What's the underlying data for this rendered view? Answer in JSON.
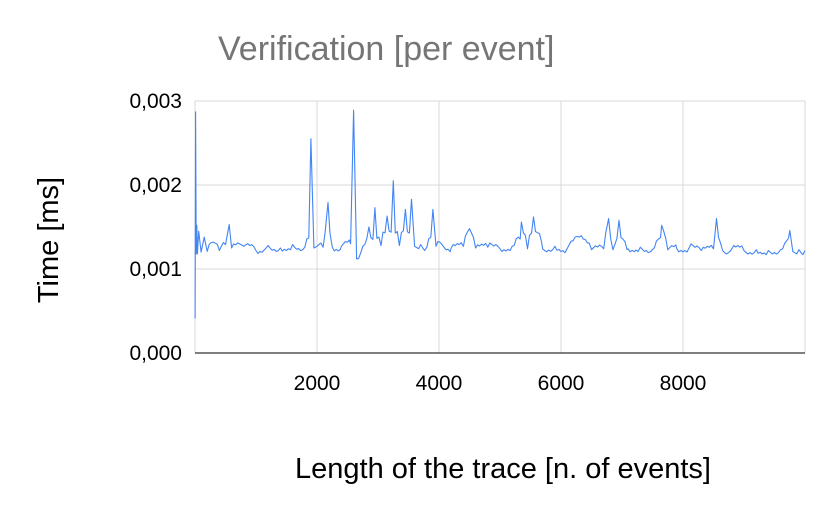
{
  "chart_data": {
    "type": "line",
    "title": "Verification [per event]",
    "xlabel": "Length of the trace [n. of events]",
    "ylabel": "Time [ms]",
    "xlim": [
      0,
      10000
    ],
    "ylim": [
      0,
      0.003
    ],
    "xticks": [
      2000,
      4000,
      6000,
      8000
    ],
    "xtick_labels": [
      "2000",
      "4000",
      "6000",
      "8000"
    ],
    "yticks": [
      0,
      0.001,
      0.002,
      0.003
    ],
    "ytick_labels": [
      "0,000",
      "0,001",
      "0,002",
      "0,003"
    ],
    "grid": true,
    "legend": "none",
    "series": [
      {
        "color": "#4285f4",
        "x": [
          1,
          10,
          20,
          30,
          40,
          60,
          100,
          150,
          200,
          300,
          400,
          500,
          560,
          600,
          800,
          1000,
          1200,
          1400,
          1600,
          1800,
          1900,
          1950,
          2000,
          2100,
          2180,
          2250,
          2400,
          2550,
          2600,
          2650,
          2750,
          2850,
          2950,
          3050,
          3150,
          3250,
          3350,
          3450,
          3550,
          3600,
          3700,
          3800,
          3900,
          3950,
          4050,
          4200,
          4400,
          4500,
          4600,
          4800,
          5000,
          5200,
          5350,
          5450,
          5550,
          5700,
          5900,
          6100,
          6300,
          6500,
          6700,
          6780,
          6850,
          6950,
          7100,
          7300,
          7500,
          7650,
          7750,
          7900,
          8100,
          8300,
          8500,
          8550,
          8650,
          8800,
          9000,
          9200,
          9400,
          9600,
          9750,
          9800,
          9900,
          10000
        ],
        "y": [
          0.00041,
          0.00287,
          0.00118,
          0.00152,
          0.00118,
          0.00145,
          0.0012,
          0.00138,
          0.00121,
          0.00132,
          0.00122,
          0.00129,
          0.00153,
          0.00125,
          0.00127,
          0.00122,
          0.00128,
          0.00125,
          0.00129,
          0.00126,
          0.00255,
          0.00125,
          0.00127,
          0.00126,
          0.00179,
          0.00126,
          0.00127,
          0.0013,
          0.00289,
          0.00112,
          0.00127,
          0.0015,
          0.00173,
          0.00128,
          0.00163,
          0.00205,
          0.00128,
          0.00171,
          0.00183,
          0.00127,
          0.00129,
          0.00126,
          0.00171,
          0.00127,
          0.00129,
          0.00125,
          0.00127,
          0.00148,
          0.00125,
          0.00126,
          0.00124,
          0.00127,
          0.00156,
          0.00124,
          0.00162,
          0.00124,
          0.00127,
          0.00124,
          0.00138,
          0.00123,
          0.00124,
          0.0016,
          0.00123,
          0.00158,
          0.00124,
          0.00126,
          0.00123,
          0.00152,
          0.00123,
          0.00124,
          0.00125,
          0.00122,
          0.00124,
          0.0016,
          0.00122,
          0.00124,
          0.00122,
          0.00123,
          0.00122,
          0.00123,
          0.00146,
          0.00121,
          0.00123,
          0.00122
        ]
      }
    ]
  }
}
